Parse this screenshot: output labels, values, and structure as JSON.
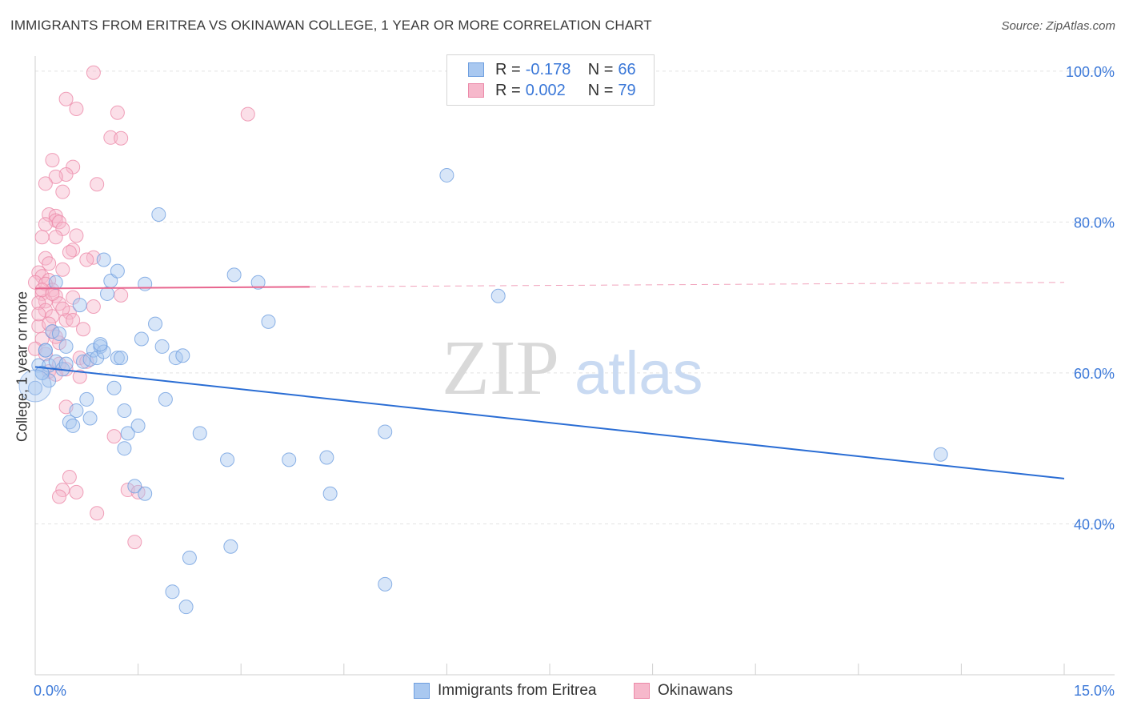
{
  "title": "IMMIGRANTS FROM ERITREA VS OKINAWAN COLLEGE, 1 YEAR OR MORE CORRELATION CHART",
  "source": "Source: ZipAtlas.com",
  "watermark": {
    "zip": "ZIP",
    "atlas": "atlas"
  },
  "legend": {
    "r_label": "R = ",
    "n_label": "N = ",
    "rows": [
      {
        "r": "-0.178",
        "n": "66"
      },
      {
        "r": "0.002",
        "n": "79"
      }
    ]
  },
  "bottom_legend": [
    "Immigrants from Eritrea",
    "Okinawans"
  ],
  "colors": {
    "blue_fill": "#a9c8f0",
    "blue_stroke": "#6f9fe0",
    "blue_line": "#2a6dd4",
    "pink_fill": "#f6b8cb",
    "pink_stroke": "#ec8aa9",
    "pink_line": "#e8668f",
    "axis_text": "#3b78d8",
    "grid": "#e3e3e3"
  },
  "chart_data": {
    "type": "scatter",
    "title": "IMMIGRANTS FROM ERITREA VS OKINAWAN COLLEGE, 1 YEAR OR MORE CORRELATION CHART",
    "xlabel": "",
    "ylabel": "College, 1 year or more",
    "xlim": [
      0,
      15
    ],
    "ylim": [
      20,
      102
    ],
    "x_tick_labels": [
      {
        "value": 0,
        "label": "0.0%"
      },
      {
        "value": 15,
        "label": "15.0%"
      }
    ],
    "y_tick_labels": [
      {
        "value": 100,
        "label": "100.0%"
      },
      {
        "value": 80,
        "label": "80.0%"
      },
      {
        "value": 60,
        "label": "60.0%"
      },
      {
        "value": 40,
        "label": "40.0%"
      }
    ],
    "series": [
      {
        "name": "Immigrants from Eritrea",
        "r": -0.178,
        "n": 66,
        "trend": {
          "x": [
            0,
            15
          ],
          "y": [
            60.8,
            46.0
          ],
          "solid_to": 15
        },
        "points": [
          [
            0.0,
            58.0
          ],
          [
            0.05,
            61.0
          ],
          [
            0.1,
            60.0
          ],
          [
            0.15,
            63.0
          ],
          [
            0.2,
            59.0
          ],
          [
            0.2,
            61.0
          ],
          [
            0.25,
            65.5
          ],
          [
            0.3,
            72.0
          ],
          [
            0.3,
            61.5
          ],
          [
            0.35,
            65.2
          ],
          [
            0.4,
            60.5
          ],
          [
            0.45,
            63.5
          ],
          [
            0.5,
            53.5
          ],
          [
            0.55,
            53.0
          ],
          [
            0.6,
            55.0
          ],
          [
            0.65,
            69.0
          ],
          [
            0.7,
            61.5
          ],
          [
            0.75,
            56.5
          ],
          [
            0.8,
            61.8
          ],
          [
            0.8,
            54.0
          ],
          [
            0.85,
            63.0
          ],
          [
            0.9,
            62.0
          ],
          [
            0.95,
            63.5
          ],
          [
            1.0,
            75.0
          ],
          [
            1.0,
            62.8
          ],
          [
            1.05,
            70.5
          ],
          [
            1.1,
            72.2
          ],
          [
            1.15,
            58.0
          ],
          [
            1.2,
            73.5
          ],
          [
            1.2,
            62.0
          ],
          [
            1.25,
            62.0
          ],
          [
            1.3,
            55.0
          ],
          [
            1.3,
            50.0
          ],
          [
            1.35,
            52.0
          ],
          [
            1.45,
            45.0
          ],
          [
            1.5,
            53.0
          ],
          [
            1.55,
            64.5
          ],
          [
            1.6,
            71.8
          ],
          [
            1.6,
            44.0
          ],
          [
            1.75,
            66.5
          ],
          [
            1.8,
            81.0
          ],
          [
            1.85,
            63.5
          ],
          [
            1.9,
            56.5
          ],
          [
            2.0,
            31.0
          ],
          [
            2.05,
            62.0
          ],
          [
            2.15,
            62.3
          ],
          [
            2.2,
            29.0
          ],
          [
            2.25,
            35.5
          ],
          [
            2.4,
            52.0
          ],
          [
            2.8,
            48.5
          ],
          [
            2.85,
            37.0
          ],
          [
            2.9,
            73.0
          ],
          [
            3.25,
            72.0
          ],
          [
            3.4,
            66.8
          ],
          [
            3.7,
            48.5
          ],
          [
            4.25,
            48.8
          ],
          [
            4.3,
            44.0
          ],
          [
            5.1,
            32.0
          ],
          [
            5.1,
            52.2
          ],
          [
            6.0,
            86.2
          ],
          [
            6.75,
            70.2
          ],
          [
            13.2,
            49.2
          ],
          [
            0.15,
            63.0
          ],
          [
            0.45,
            61.2
          ],
          [
            0.95,
            63.8
          ],
          [
            0.1,
            60.0
          ]
        ]
      },
      {
        "name": "Okinawans",
        "r": 0.002,
        "n": 79,
        "trend": {
          "x": [
            0,
            15
          ],
          "y": [
            71.2,
            72.0
          ],
          "solid_to": 4.0
        },
        "points": [
          [
            0.85,
            99.8
          ],
          [
            0.45,
            96.3
          ],
          [
            0.6,
            95.0
          ],
          [
            1.2,
            94.5
          ],
          [
            3.1,
            94.3
          ],
          [
            1.1,
            91.2
          ],
          [
            1.25,
            91.1
          ],
          [
            0.25,
            88.2
          ],
          [
            0.55,
            87.3
          ],
          [
            0.45,
            86.3
          ],
          [
            0.3,
            86.0
          ],
          [
            0.15,
            85.1
          ],
          [
            0.9,
            85.0
          ],
          [
            0.4,
            84.0
          ],
          [
            0.2,
            81.0
          ],
          [
            0.3,
            80.8
          ],
          [
            0.3,
            80.2
          ],
          [
            0.35,
            80.0
          ],
          [
            0.15,
            79.7
          ],
          [
            0.4,
            79.1
          ],
          [
            0.1,
            78.0
          ],
          [
            0.3,
            78.0
          ],
          [
            0.6,
            78.2
          ],
          [
            0.55,
            76.3
          ],
          [
            0.5,
            76.0
          ],
          [
            0.85,
            75.3
          ],
          [
            0.15,
            75.2
          ],
          [
            0.75,
            75.0
          ],
          [
            0.2,
            74.5
          ],
          [
            0.4,
            73.7
          ],
          [
            0.05,
            73.3
          ],
          [
            0.1,
            72.8
          ],
          [
            0.2,
            72.3
          ],
          [
            0.0,
            72.0
          ],
          [
            0.15,
            71.8
          ],
          [
            0.25,
            71.0
          ],
          [
            0.1,
            70.5
          ],
          [
            0.3,
            70.2
          ],
          [
            1.25,
            70.3
          ],
          [
            0.55,
            70.0
          ],
          [
            0.15,
            69.5
          ],
          [
            0.05,
            69.3
          ],
          [
            0.35,
            69.2
          ],
          [
            0.5,
            68.0
          ],
          [
            0.85,
            68.8
          ],
          [
            0.15,
            68.3
          ],
          [
            0.25,
            67.5
          ],
          [
            0.45,
            67.0
          ],
          [
            0.55,
            67.0
          ],
          [
            0.05,
            66.2
          ],
          [
            0.25,
            65.5
          ],
          [
            0.7,
            65.8
          ],
          [
            0.1,
            64.5
          ],
          [
            0.35,
            64.0
          ],
          [
            0.0,
            63.2
          ],
          [
            0.65,
            62.0
          ],
          [
            0.35,
            61.2
          ],
          [
            0.45,
            60.5
          ],
          [
            0.2,
            60.2
          ],
          [
            0.75,
            61.5
          ],
          [
            0.3,
            59.8
          ],
          [
            0.65,
            59.5
          ],
          [
            0.45,
            55.5
          ],
          [
            1.15,
            51.6
          ],
          [
            0.5,
            46.2
          ],
          [
            0.4,
            44.5
          ],
          [
            0.6,
            44.2
          ],
          [
            1.35,
            44.5
          ],
          [
            1.5,
            44.2
          ],
          [
            0.35,
            43.6
          ],
          [
            0.9,
            41.4
          ],
          [
            1.45,
            37.6
          ],
          [
            0.1,
            71.0
          ],
          [
            0.25,
            70.5
          ],
          [
            0.4,
            68.5
          ],
          [
            0.05,
            67.8
          ],
          [
            0.2,
            66.5
          ],
          [
            0.3,
            64.8
          ],
          [
            0.15,
            62.5
          ]
        ]
      }
    ]
  }
}
